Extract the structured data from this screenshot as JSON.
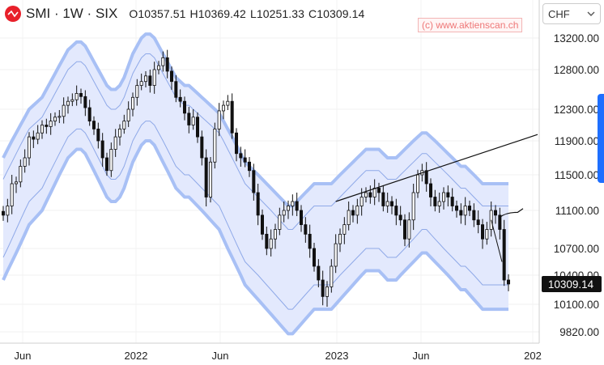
{
  "header": {
    "symbol": "SMI",
    "interval": "1W",
    "exchange": "SIX",
    "title": "SMI · 1W · SIX",
    "ohlc": {
      "open": "O10357.51",
      "high": "H10369.42",
      "low": "L10251.33",
      "close": "C10309.14"
    }
  },
  "watermark": "(c) www.aktienscan.ch",
  "currency": "CHF",
  "colors": {
    "band_fill": "#e3e9fd",
    "band_outer": "#a8c0f5",
    "band_inner": "#8fa9e8",
    "candle": "#111111",
    "accent": "#1e6fff"
  },
  "chart_data": {
    "type": "candlestick",
    "y_ticks": [
      "13200.00",
      "12800.00",
      "12300.00",
      "11900.00",
      "11500.00",
      "11100.00",
      "10700.00",
      "10400.00",
      "10100.00",
      "9820.00"
    ],
    "x_ticks": [
      "Jun",
      "2022",
      "Jun",
      "2023",
      "Jun",
      "202"
    ],
    "last_value": "10309.14",
    "ylim": [
      9600,
      13450
    ],
    "close": [
      11050,
      11150,
      11400,
      11420,
      11600,
      11700,
      11950,
      11920,
      12000,
      12100,
      12080,
      12150,
      12200,
      12210,
      12350,
      12400,
      12420,
      12500,
      12460,
      12320,
      12150,
      12050,
      11900,
      11700,
      11550,
      11800,
      11950,
      12050,
      12150,
      12300,
      12450,
      12600,
      12650,
      12720,
      12600,
      12800,
      12850,
      12950,
      12780,
      12650,
      12450,
      12400,
      12250,
      12100,
      12200,
      11950,
      11700,
      11250,
      11650,
      12050,
      12280,
      12350,
      12400,
      12000,
      11750,
      11700,
      11650,
      11550,
      11300,
      11050,
      10850,
      10700,
      10800,
      10900,
      11050,
      11100,
      11150,
      11200,
      11100,
      10950,
      10850,
      10700,
      10500,
      10350,
      10180,
      10280,
      10500,
      10750,
      10850,
      10950,
      11100,
      11050,
      11150,
      11250,
      11300,
      11250,
      11350,
      11300,
      11150,
      11200,
      11150,
      11050,
      11000,
      10800,
      11000,
      11300,
      11500,
      11550,
      11400,
      11250,
      11150,
      11200,
      11300,
      11250,
      11150,
      11100,
      11050,
      11150,
      11100,
      11000,
      10950,
      10800,
      10900,
      11100,
      11050,
      10900,
      10350,
      10309.14
    ],
    "upper_outer": [
      11700,
      11800,
      11900,
      12000,
      12100,
      12200,
      12300,
      12350,
      12400,
      12450,
      12550,
      12650,
      12750,
      12850,
      12950,
      13050,
      13100,
      13150,
      13150,
      13100,
      13000,
      12900,
      12800,
      12700,
      12600,
      12550,
      12550,
      12600,
      12700,
      12850,
      13000,
      13100,
      13200,
      13250,
      13250,
      13200,
      13100,
      13000,
      12900,
      12800,
      12700,
      12650,
      12600,
      12600,
      12550,
      12500,
      12450,
      12400,
      12350,
      12300,
      12250,
      12150,
      12050,
      11950,
      11850,
      11750,
      11650,
      11600,
      11550,
      11500,
      11450,
      11400,
      11350,
      11300,
      11250,
      11200,
      11150,
      11150,
      11200,
      11250,
      11300,
      11350,
      11400,
      11400,
      11400,
      11400,
      11400,
      11450,
      11500,
      11550,
      11600,
      11650,
      11700,
      11750,
      11800,
      11800,
      11800,
      11800,
      11750,
      11700,
      11700,
      11700,
      11750,
      11800,
      11850,
      11900,
      11950,
      12000,
      12000,
      11950,
      11900,
      11850,
      11800,
      11750,
      11700,
      11650,
      11600,
      11600,
      11550,
      11500,
      11450,
      11400,
      11400,
      11400,
      11400,
      11400,
      11400,
      11400
    ],
    "upper_inner": [
      11450,
      11550,
      11650,
      11750,
      11850,
      11950,
      12050,
      12100,
      12150,
      12200,
      12300,
      12400,
      12500,
      12600,
      12700,
      12800,
      12850,
      12900,
      12900,
      12850,
      12750,
      12650,
      12550,
      12450,
      12350,
      12300,
      12300,
      12350,
      12450,
      12600,
      12750,
      12850,
      12950,
      13000,
      13000,
      12950,
      12850,
      12750,
      12650,
      12550,
      12450,
      12400,
      12350,
      12350,
      12300,
      12250,
      12200,
      12150,
      12100,
      12050,
      12000,
      11900,
      11800,
      11700,
      11600,
      11500,
      11400,
      11350,
      11300,
      11250,
      11200,
      11150,
      11100,
      11050,
      11000,
      10950,
      10900,
      10900,
      10950,
      11000,
      11050,
      11100,
      11150,
      11150,
      11150,
      11150,
      11150,
      11200,
      11250,
      11300,
      11350,
      11400,
      11450,
      11500,
      11550,
      11550,
      11550,
      11550,
      11500,
      11450,
      11450,
      11450,
      11500,
      11550,
      11600,
      11650,
      11700,
      11750,
      11750,
      11700,
      11650,
      11600,
      11550,
      11500,
      11450,
      11400,
      11350,
      11350,
      11300,
      11250,
      11200,
      11150,
      11150,
      11150,
      11150,
      11150,
      11150,
      11150
    ],
    "lower_inner": [
      10600,
      10700,
      10800,
      10900,
      11000,
      11100,
      11200,
      11250,
      11300,
      11350,
      11450,
      11550,
      11650,
      11750,
      11850,
      11950,
      12000,
      12050,
      12050,
      12000,
      11900,
      11800,
      11700,
      11600,
      11500,
      11450,
      11450,
      11500,
      11600,
      11750,
      11900,
      12000,
      12100,
      12150,
      12150,
      12100,
      12000,
      11900,
      11800,
      11700,
      11600,
      11550,
      11500,
      11500,
      11450,
      11400,
      11350,
      11300,
      11250,
      11200,
      11150,
      11050,
      10950,
      10850,
      10750,
      10650,
      10550,
      10500,
      10450,
      10400,
      10350,
      10300,
      10250,
      10200,
      10150,
      10100,
      10050,
      10050,
      10100,
      10150,
      10200,
      10250,
      10300,
      10300,
      10300,
      10300,
      10300,
      10350,
      10400,
      10450,
      10500,
      10550,
      10600,
      10650,
      10700,
      10700,
      10700,
      10700,
      10650,
      10600,
      10600,
      10600,
      10650,
      10700,
      10750,
      10800,
      10850,
      10900,
      10900,
      10850,
      10800,
      10750,
      10700,
      10650,
      10600,
      10550,
      10500,
      10500,
      10450,
      10400,
      10350,
      10300,
      10300,
      10300,
      10300,
      10300,
      10300,
      10300
    ],
    "lower_outer": [
      10350,
      10450,
      10550,
      10650,
      10750,
      10850,
      10950,
      11000,
      11050,
      11100,
      11200,
      11300,
      11400,
      11500,
      11600,
      11700,
      11750,
      11800,
      11800,
      11750,
      11650,
      11550,
      11450,
      11350,
      11250,
      11200,
      11200,
      11250,
      11350,
      11500,
      11650,
      11750,
      11850,
      11900,
      11900,
      11850,
      11750,
      11650,
      11550,
      11450,
      11350,
      11300,
      11250,
      11250,
      11200,
      11150,
      11100,
      11050,
      11000,
      10950,
      10900,
      10800,
      10700,
      10600,
      10500,
      10400,
      10300,
      10250,
      10200,
      10150,
      10100,
      10050,
      10000,
      9950,
      9900,
      9850,
      9800,
      9800,
      9850,
      9900,
      9950,
      10000,
      10050,
      10050,
      10050,
      10050,
      10050,
      10100,
      10150,
      10200,
      10250,
      10300,
      10350,
      10400,
      10450,
      10450,
      10450,
      10450,
      10400,
      10350,
      10350,
      10350,
      10400,
      10450,
      10500,
      10550,
      10600,
      10650,
      10650,
      10600,
      10550,
      10500,
      10450,
      10400,
      10350,
      10300,
      10250,
      10250,
      10200,
      10150,
      10100,
      10050,
      10050,
      10050,
      10050,
      10050,
      10050,
      10050
    ],
    "trendline": {
      "from": {
        "week": 77,
        "value": 11200
      },
      "to": {
        "week": 135,
        "value": 11980
      }
    },
    "mini_line": {
      "from": {
        "week": 115,
        "value": 11080
      },
      "to": {
        "week": 125,
        "value": 11120
      }
    }
  }
}
